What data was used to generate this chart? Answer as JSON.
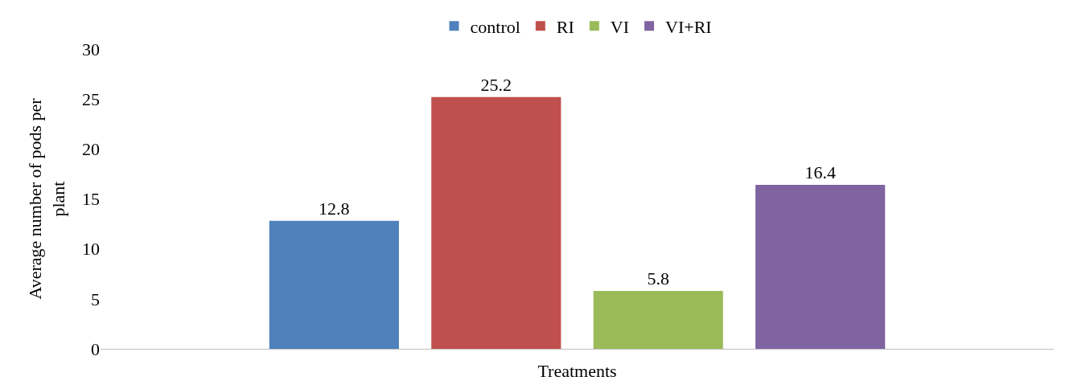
{
  "chart_data": {
    "type": "bar",
    "xlabel": "Treatments",
    "ylabel": "Average number of pods per plant",
    "categories": [
      null
    ],
    "series": [
      {
        "name": "control",
        "color": "#4f81bd",
        "values": [
          12.8
        ]
      },
      {
        "name": "RI",
        "color": "#c0504d",
        "values": [
          25.2
        ]
      },
      {
        "name": "VI",
        "color": "#9bbb59",
        "values": [
          5.8
        ]
      },
      {
        "name": "VI+RI",
        "color": "#8064a2",
        "values": [
          16.4
        ]
      }
    ],
    "ylim": [
      0,
      30
    ],
    "yticks": [
      0,
      5,
      10,
      15,
      20,
      25,
      30
    ],
    "data_labels": true,
    "grid": false,
    "legend": "top"
  }
}
